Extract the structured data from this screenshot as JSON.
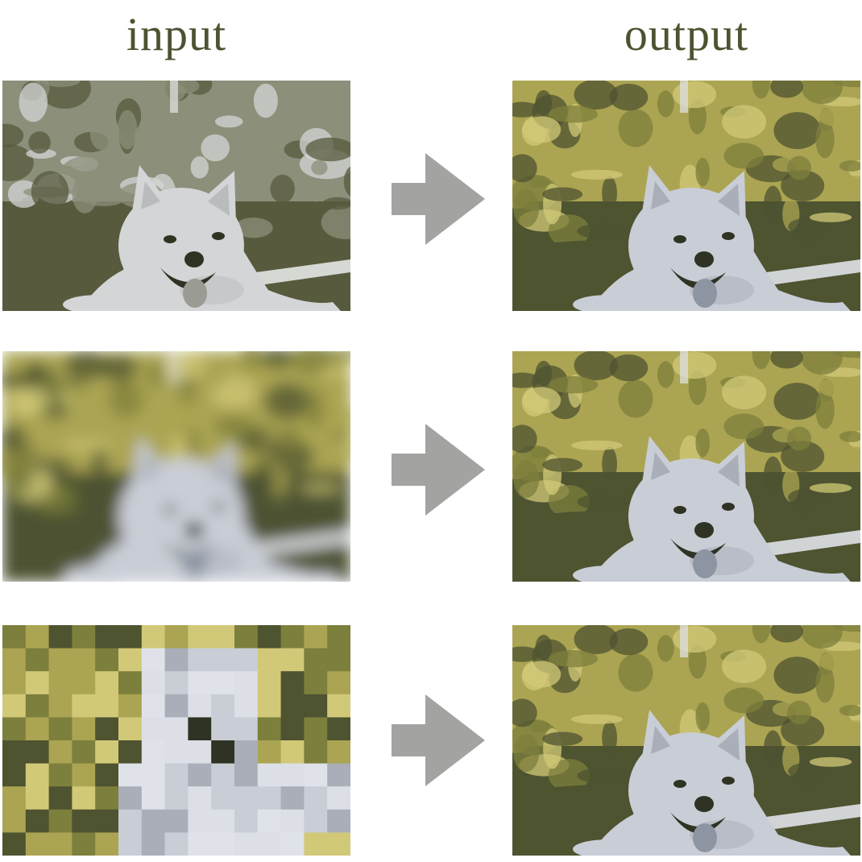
{
  "headings": {
    "input": "input",
    "output": "output"
  },
  "colors": {
    "heading": "#4d5330",
    "arrow": "#a3a3a1",
    "grass_dark": "#4e5330",
    "grass_mid": "#7d7f3c",
    "grass_light": "#aba452",
    "highlight": "#d2c978",
    "dog": "#c9cdd6",
    "dog_light": "#dfe2e8",
    "dog_shadow": "#a9aeb8",
    "dark": "#2f3323",
    "tongue": "#8d95a3",
    "gray_dark": "#585a3e",
    "gray_mid": "#8c8f7a",
    "gray_light": "#d3d5d6"
  },
  "rows": [
    {
      "input_icon": "dog-grayscale-photo-icon",
      "arrow_icon": "right-arrow-icon",
      "output_icon": "dog-color-photo-icon"
    },
    {
      "input_icon": "dog-blurred-photo-icon",
      "arrow_icon": "right-arrow-icon",
      "output_icon": "dog-color-photo-icon"
    },
    {
      "input_icon": "dog-pixelated-photo-icon",
      "arrow_icon": "right-arrow-icon",
      "output_icon": "dog-color-photo-icon"
    }
  ]
}
